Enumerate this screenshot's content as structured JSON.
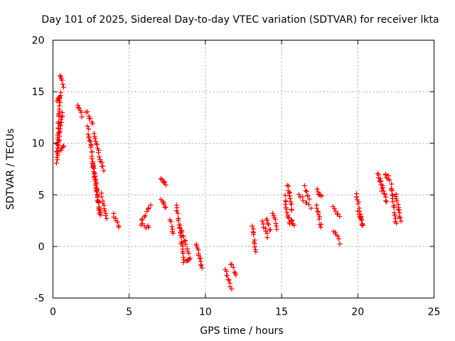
{
  "chart_data": {
    "type": "scatter",
    "title": "Day 101 of 2025, Sidereal Day-to-day VTEC variation (SDTVAR) for receiver lkta",
    "xlabel": "GPS time / hours",
    "ylabel": "SDTVAR / TECUs",
    "xlim": [
      0,
      25
    ],
    "ylim": [
      -5,
      20
    ],
    "x_ticks": [
      0,
      5,
      10,
      15,
      20,
      25
    ],
    "y_ticks": [
      -5,
      0,
      5,
      10,
      15,
      20
    ],
    "x_tick_labels": [
      "0",
      "5",
      "10",
      "15",
      "20",
      "25"
    ],
    "y_tick_labels": [
      "-5",
      "0",
      "5",
      "10",
      "15",
      "20"
    ],
    "grid": true,
    "marker": "+",
    "marker_color": "#ff0000",
    "series": [
      {
        "name": "SDTVAR",
        "segments": [
          {
            "x0": 0.25,
            "x1": 0.45,
            "y0": 8.2,
            "y1": 14.5
          },
          {
            "x0": 0.3,
            "x1": 0.6,
            "y0": 9.0,
            "y1": 13.0
          },
          {
            "x0": 0.5,
            "x1": 0.7,
            "y0": 9.2,
            "y1": 9.8
          },
          {
            "x0": 0.3,
            "x1": 0.55,
            "y0": 14.0,
            "y1": 14.8
          },
          {
            "x0": 0.5,
            "x1": 0.7,
            "y0": 16.5,
            "y1": 15.6
          },
          {
            "x0": 1.6,
            "x1": 1.9,
            "y0": 13.8,
            "y1": 12.6
          },
          {
            "x0": 2.2,
            "x1": 2.6,
            "y0": 13.2,
            "y1": 11.8
          },
          {
            "x0": 2.3,
            "x1": 3.1,
            "y0": 11.5,
            "y1": 3.2
          },
          {
            "x0": 2.6,
            "x1": 3.1,
            "y0": 8.0,
            "y1": 3.0
          },
          {
            "x0": 2.7,
            "x1": 3.3,
            "y0": 10.8,
            "y1": 7.5
          },
          {
            "x0": 3.2,
            "x1": 3.5,
            "y0": 5.0,
            "y1": 2.8
          },
          {
            "x0": 3.95,
            "x1": 4.35,
            "y0": 3.2,
            "y1": 1.8
          },
          {
            "x0": 5.8,
            "x1": 6.4,
            "y0": 2.5,
            "y1": 4.0
          },
          {
            "x0": 5.8,
            "x1": 6.3,
            "y0": 2.2,
            "y1": 1.8
          },
          {
            "x0": 7.1,
            "x1": 7.4,
            "y0": 6.5,
            "y1": 6.0
          },
          {
            "x0": 7.1,
            "x1": 7.4,
            "y0": 4.5,
            "y1": 3.8
          },
          {
            "x0": 7.7,
            "x1": 7.9,
            "y0": 2.5,
            "y1": 1.3
          },
          {
            "x0": 8.1,
            "x1": 8.6,
            "y0": 4.0,
            "y1": -1.5
          },
          {
            "x0": 8.3,
            "x1": 8.9,
            "y0": 2.0,
            "y1": -0.5
          },
          {
            "x0": 8.8,
            "x1": 9.0,
            "y0": -1.5,
            "y1": -1.2
          },
          {
            "x0": 9.4,
            "x1": 9.8,
            "y0": 0.3,
            "y1": -2.2
          },
          {
            "x0": 11.3,
            "x1": 11.7,
            "y0": -2.2,
            "y1": -4.0
          },
          {
            "x0": 11.7,
            "x1": 12.0,
            "y0": -1.6,
            "y1": -2.8
          },
          {
            "x0": 13.1,
            "x1": 13.3,
            "y0": 2.0,
            "y1": -0.5
          },
          {
            "x0": 13.7,
            "x1": 14.1,
            "y0": 2.5,
            "y1": 1.0
          },
          {
            "x0": 14.0,
            "x1": 14.3,
            "y0": 2.8,
            "y1": 1.5
          },
          {
            "x0": 14.4,
            "x1": 14.7,
            "y0": 3.2,
            "y1": 1.8
          },
          {
            "x0": 15.2,
            "x1": 15.5,
            "y0": 4.8,
            "y1": 2.2
          },
          {
            "x0": 15.4,
            "x1": 15.7,
            "y0": 6.0,
            "y1": 3.5
          },
          {
            "x0": 15.6,
            "x1": 15.8,
            "y0": 2.5,
            "y1": 2.2
          },
          {
            "x0": 16.1,
            "x1": 16.9,
            "y0": 5.0,
            "y1": 3.8
          },
          {
            "x0": 16.5,
            "x1": 16.8,
            "y0": 5.8,
            "y1": 4.5
          },
          {
            "x0": 17.3,
            "x1": 17.6,
            "y0": 5.5,
            "y1": 4.8
          },
          {
            "x0": 17.3,
            "x1": 17.6,
            "y0": 4.0,
            "y1": 1.8
          },
          {
            "x0": 18.4,
            "x1": 18.8,
            "y0": 3.8,
            "y1": 3.0
          },
          {
            "x0": 18.4,
            "x1": 18.8,
            "y0": 1.5,
            "y1": 0.4
          },
          {
            "x0": 19.9,
            "x1": 20.3,
            "y0": 5.2,
            "y1": 2.0
          },
          {
            "x0": 20.0,
            "x1": 20.3,
            "y0": 3.5,
            "y1": 2.0
          },
          {
            "x0": 21.3,
            "x1": 21.6,
            "y0": 7.2,
            "y1": 5.5
          },
          {
            "x0": 21.5,
            "x1": 21.9,
            "y0": 6.5,
            "y1": 4.3
          },
          {
            "x0": 21.8,
            "x1": 22.1,
            "y0": 7.0,
            "y1": 6.5
          },
          {
            "x0": 22.2,
            "x1": 22.5,
            "y0": 6.0,
            "y1": 2.2
          },
          {
            "x0": 22.5,
            "x1": 22.8,
            "y0": 5.0,
            "y1": 2.5
          }
        ]
      }
    ]
  }
}
